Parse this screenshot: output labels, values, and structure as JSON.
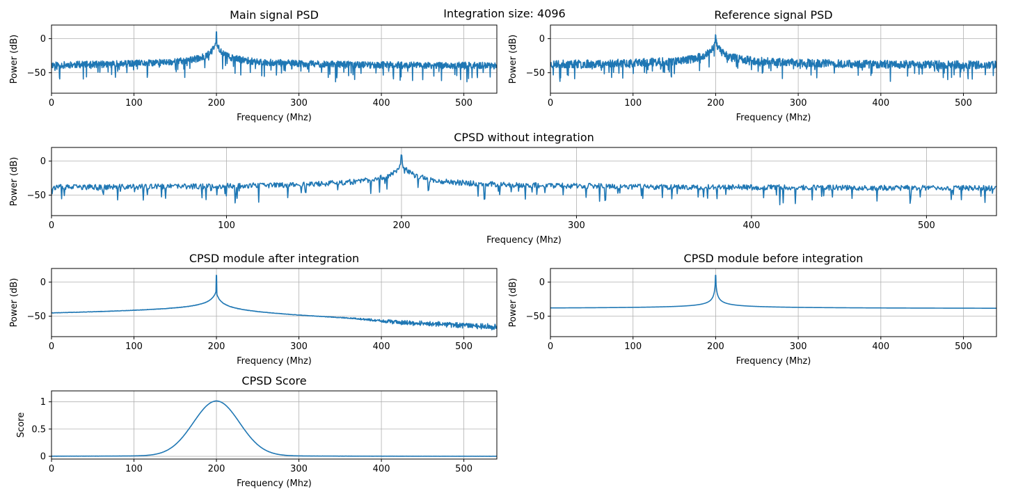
{
  "figure": {
    "suptitle": "Integration size: 4096"
  },
  "chart_data": [
    {
      "id": "main_psd",
      "type": "line",
      "title": "Main signal PSD",
      "xlabel": "Frequency (Mhz)",
      "ylabel": "Power (dB)",
      "xlim": [
        0,
        540
      ],
      "ylim": [
        -80,
        20
      ],
      "xticks": [
        0,
        100,
        200,
        300,
        400,
        500
      ],
      "yticks": [
        0,
        -50
      ],
      "grid": true,
      "color": "#1f77b4",
      "shape": "noisy",
      "peak": {
        "x": 200,
        "y": 10
      },
      "baseline": -43,
      "lower_floor": -43,
      "noise": 5,
      "seed": 11
    },
    {
      "id": "ref_psd",
      "type": "line",
      "title": "Reference signal PSD",
      "xlabel": "Frequency (Mhz)",
      "ylabel": "Power (dB)",
      "xlim": [
        0,
        540
      ],
      "ylim": [
        -80,
        20
      ],
      "xticks": [
        0,
        100,
        200,
        300,
        400,
        500
      ],
      "yticks": [
        0,
        -50
      ],
      "grid": true,
      "color": "#1f77b4",
      "shape": "noisy",
      "peak": {
        "x": 200,
        "y": 10
      },
      "baseline": -42,
      "lower_floor": -42,
      "noise": 6,
      "seed": 23
    },
    {
      "id": "cpsd_raw",
      "type": "line",
      "title": "CPSD without integration",
      "xlabel": "Frequency (Mhz)",
      "ylabel": "Power (dB)",
      "xlim": [
        0,
        540
      ],
      "ylim": [
        -80,
        20
      ],
      "xticks": [
        0,
        100,
        200,
        300,
        400,
        500
      ],
      "yticks": [
        0,
        -50
      ],
      "grid": true,
      "color": "#1f77b4",
      "shape": "noisy",
      "peak": {
        "x": 200,
        "y": 10
      },
      "baseline": -43,
      "lower_floor": -43,
      "noise": 4,
      "seed": 37
    },
    {
      "id": "cpsd_after",
      "type": "line",
      "title": "CPSD module after integration",
      "xlabel": "Frequency (Mhz)",
      "ylabel": "Power (dB)",
      "xlim": [
        0,
        540
      ],
      "ylim": [
        -80,
        20
      ],
      "xticks": [
        0,
        100,
        200,
        300,
        400,
        500
      ],
      "yticks": [
        0,
        -50
      ],
      "grid": true,
      "color": "#1f77b4",
      "shape": "integrated",
      "peak": {
        "x": 200,
        "y": 10
      },
      "baseline": -50,
      "lower_floor": -59,
      "noise": 2.5,
      "seed": 41
    },
    {
      "id": "cpsd_before",
      "type": "line",
      "title": "CPSD module before integration",
      "xlabel": "Frequency (Mhz)",
      "ylabel": "Power (dB)",
      "xlim": [
        0,
        540
      ],
      "ylim": [
        -80,
        20
      ],
      "xticks": [
        0,
        100,
        200,
        300,
        400,
        500
      ],
      "yticks": [
        0,
        -50
      ],
      "grid": true,
      "color": "#1f77b4",
      "shape": "smooth",
      "peak": {
        "x": 200,
        "y": 10
      },
      "baseline": -39.5,
      "lower_floor": -39.5,
      "noise": 0,
      "seed": 5
    },
    {
      "id": "cpsd_score",
      "type": "line",
      "title": "CPSD Score",
      "xlabel": "Frequency (Mhz)",
      "ylabel": "Score",
      "xlim": [
        0,
        540
      ],
      "ylim": [
        -0.05,
        1.2
      ],
      "xticks": [
        0,
        100,
        200,
        300,
        400,
        500
      ],
      "yticks": [
        0.0,
        0.5,
        1.0
      ],
      "grid": true,
      "color": "#1f77b4",
      "shape": "score",
      "peak": {
        "x": 200,
        "y": 1.0
      },
      "baseline": 0.0,
      "noise": 0.002,
      "seed": 9
    }
  ]
}
